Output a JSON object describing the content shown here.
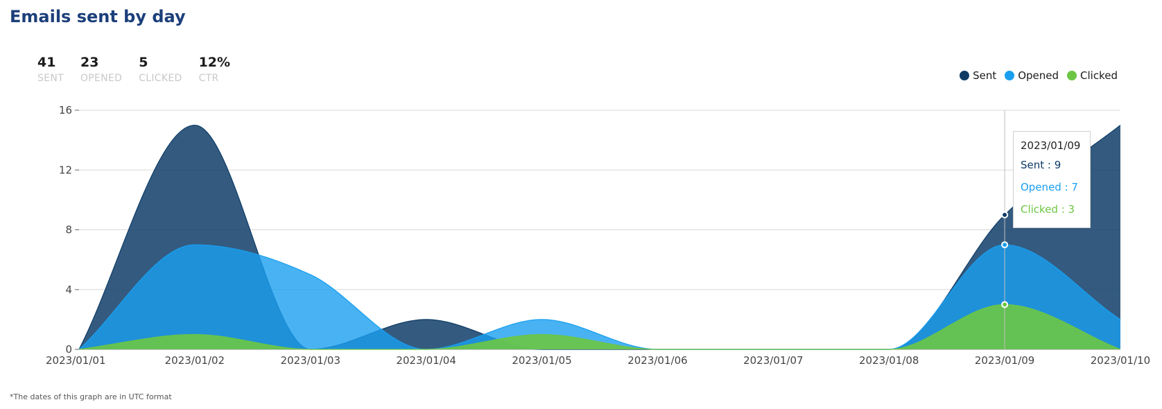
{
  "title": "Emails sent by day",
  "stats": [
    {
      "value": "41",
      "label": "SENT"
    },
    {
      "value": "23",
      "label": "OPENED"
    },
    {
      "value": "5",
      "label": "CLICKED"
    },
    {
      "value": "12%",
      "label": "CTR"
    }
  ],
  "legend": [
    {
      "name": "Sent",
      "color": "#0d3b66"
    },
    {
      "name": "Opened",
      "color": "#1a9ff0"
    },
    {
      "name": "Clicked",
      "color": "#6cc644"
    }
  ],
  "tooltip": {
    "date": "2023/01/09",
    "rows": [
      {
        "label": "Sent : 9",
        "color": "#0d3b66"
      },
      {
        "label": "Opened : 7",
        "color": "#1a9ff0"
      },
      {
        "label": "Clicked : 3",
        "color": "#6cc644"
      }
    ]
  },
  "footnote": "*The dates of this graph are in UTC format",
  "chart_data": {
    "type": "area",
    "title": "Emails sent by day",
    "categories": [
      "2023/01/01",
      "2023/01/02",
      "2023/01/03",
      "2023/01/04",
      "2023/01/05",
      "2023/01/06",
      "2023/01/07",
      "2023/01/08",
      "2023/01/09",
      "2023/01/10"
    ],
    "series": [
      {
        "name": "Sent",
        "color": "#0d3b66",
        "values": [
          0,
          15,
          0,
          2,
          0,
          0,
          0,
          0,
          9,
          15
        ]
      },
      {
        "name": "Opened",
        "color": "#1a9ff0",
        "values": [
          0,
          7,
          5,
          0,
          2,
          0,
          0,
          0,
          7,
          2
        ]
      },
      {
        "name": "Clicked",
        "color": "#6cc644",
        "values": [
          0,
          1,
          0,
          0,
          1,
          0,
          0,
          0,
          3,
          0
        ]
      }
    ],
    "ylim": [
      0,
      16
    ],
    "yticks": [
      0,
      4,
      8,
      12,
      16
    ],
    "grid": true,
    "legend_position": "top-right",
    "highlight_category": "2023/01/09"
  }
}
